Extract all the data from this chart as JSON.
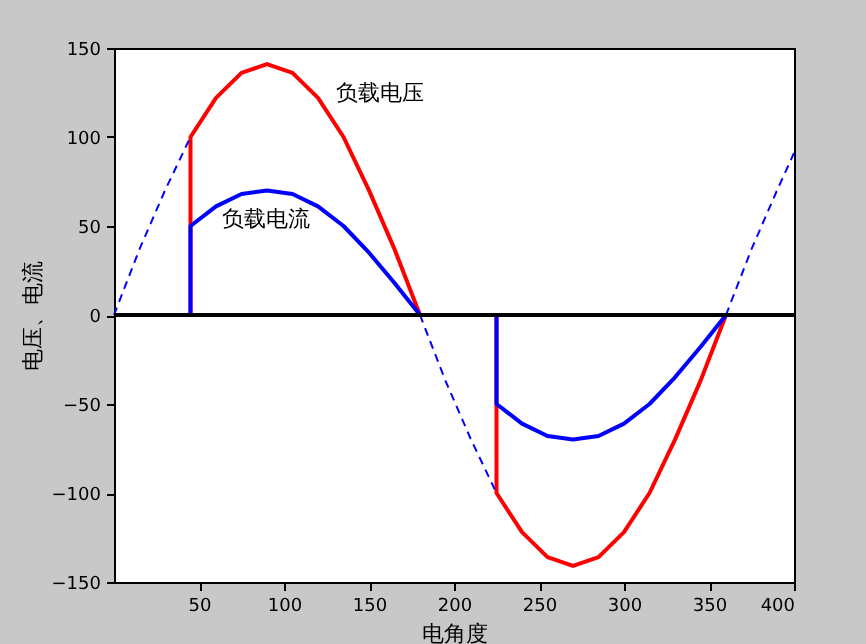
{
  "chart_data": {
    "type": "line",
    "xlabel": "电角度",
    "ylabel": "电压、电流",
    "xlim": [
      0,
      400
    ],
    "xticks": [
      50,
      100,
      150,
      200,
      250,
      300,
      350,
      400
    ],
    "ylim": [
      -150,
      150
    ],
    "yticks": [
      -150,
      -100,
      -50,
      0,
      50,
      100,
      150
    ],
    "grid": false,
    "series": [
      {
        "color": "#ff0000",
        "x": [
          0,
          45,
          45,
          60,
          75,
          90,
          105,
          120,
          135,
          150,
          165,
          180,
          225,
          225,
          240,
          255,
          270,
          285,
          300,
          315,
          330,
          345,
          360
        ],
        "values": [
          0,
          0,
          100,
          122,
          136,
          141,
          136,
          122,
          100,
          70,
          37,
          0,
          0,
          -100,
          -122,
          -136,
          -141,
          -136,
          -122,
          -100,
          -70,
          -37,
          0
        ]
      },
      {
        "color": "#0000ff",
        "x": [
          0,
          45,
          45,
          60,
          75,
          90,
          105,
          120,
          135,
          150,
          165,
          180,
          225,
          225,
          240,
          255,
          270,
          285,
          300,
          315,
          330,
          345,
          360
        ],
        "values": [
          0,
          0,
          50,
          61,
          68,
          70,
          68,
          61,
          50,
          35,
          18,
          0,
          0,
          -50,
          -61,
          -68,
          -70,
          -68,
          -61,
          -50,
          -35,
          -18,
          0
        ]
      },
      {
        "color": "#0000ff",
        "line_style": "dashed",
        "x": [
          0,
          15,
          30,
          45,
          100,
          180,
          195,
          210,
          225,
          300,
          360,
          375,
          390,
          400
        ],
        "values": [
          0,
          37,
          70,
          100,
          null,
          0,
          -37,
          -70,
          -100,
          null,
          0,
          37,
          70,
          91
        ]
      }
    ],
    "ref_lines": [
      {
        "axis": "y",
        "value": 0,
        "color": "#000000"
      }
    ],
    "annotations": [
      "负载电压",
      "负载电流"
    ]
  }
}
